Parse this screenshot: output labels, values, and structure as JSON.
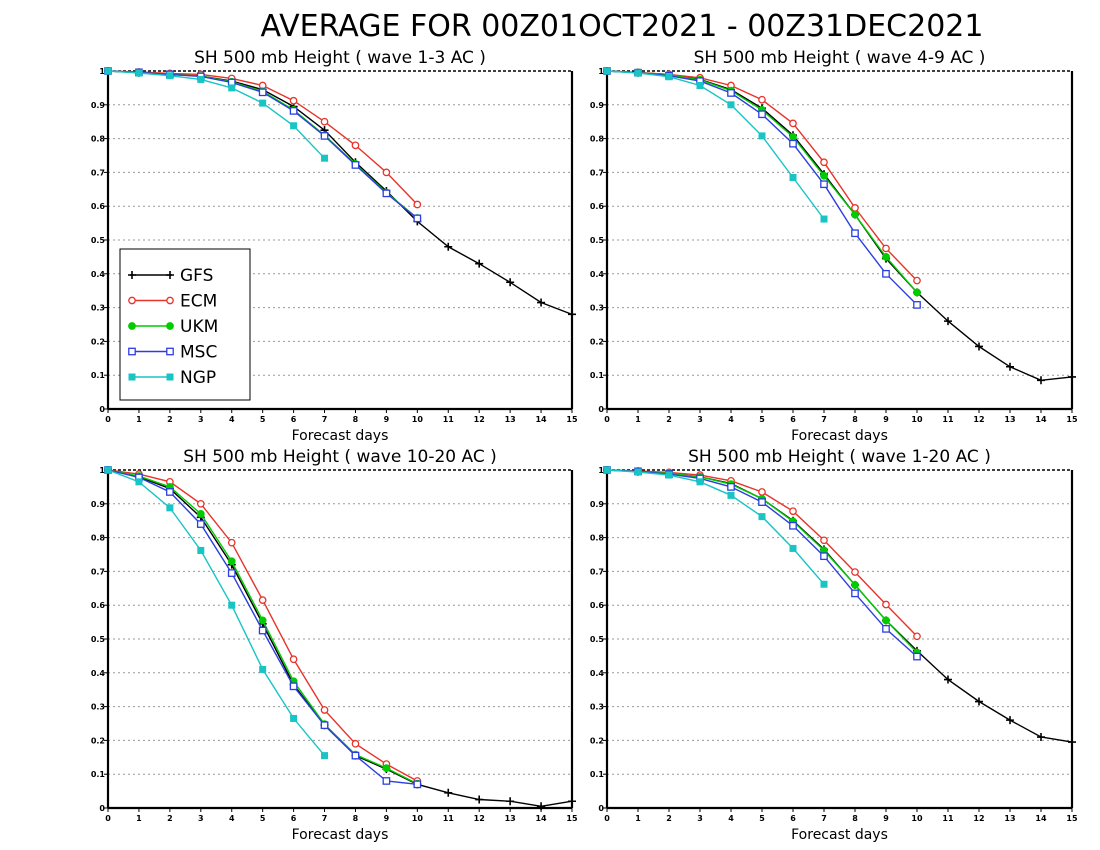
{
  "title": "AVERAGE FOR 00Z01OCT2021 - 00Z31DEC2021",
  "colors": {
    "GFS": "#000000",
    "ECM": "#e8332a",
    "UKM": "#00cc00",
    "MSC": "#2b3fe0",
    "NGP": "#18c4c4"
  },
  "chart_data": [
    {
      "type": "line",
      "title": "SH 500 mb Height ( wave 1-3 AC )",
      "xlabel": "Forecast days",
      "xlim": [
        0,
        15
      ],
      "ylim": [
        0,
        1
      ],
      "x_ticks": [
        "0",
        "1",
        "2",
        "3",
        "4",
        "5",
        "6",
        "7",
        "8",
        "9",
        "10",
        "11",
        "12",
        "13",
        "14",
        "15"
      ],
      "y_ticks": [
        "0",
        "0.1",
        "0.2",
        "0.3",
        "0.4",
        "0.5",
        "0.6",
        "0.7",
        "0.8",
        "0.9",
        "1"
      ],
      "grid": true,
      "legend": {
        "position": "lower-left",
        "entries": [
          "GFS",
          "ECM",
          "UKM",
          "MSC",
          "NGP"
        ]
      },
      "series": [
        {
          "name": "GFS",
          "marker": "plus",
          "x": [
            0,
            1,
            2,
            3,
            4,
            5,
            6,
            7,
            8,
            9,
            10,
            11,
            12,
            13,
            14,
            15
          ],
          "values": [
            1.0,
            0.995,
            0.99,
            0.985,
            0.97,
            0.945,
            0.895,
            0.825,
            0.73,
            0.645,
            0.555,
            0.48,
            0.43,
            0.375,
            0.315,
            0.28
          ]
        },
        {
          "name": "ECM",
          "marker": "circle",
          "x": [
            0,
            1,
            2,
            3,
            4,
            5,
            6,
            7,
            8,
            9,
            10
          ],
          "values": [
            1.0,
            0.997,
            0.993,
            0.99,
            0.978,
            0.957,
            0.912,
            0.85,
            0.78,
            0.7,
            0.605
          ]
        },
        {
          "name": "UKM",
          "marker": "dot",
          "x": [
            0,
            1,
            2,
            3,
            4,
            5,
            6,
            7,
            8,
            9,
            10
          ],
          "values": [
            1.0,
            0.996,
            0.99,
            0.985,
            0.968,
            0.94,
            0.885,
            0.81,
            0.725,
            0.64,
            0.565
          ]
        },
        {
          "name": "MSC",
          "marker": "square",
          "x": [
            0,
            1,
            2,
            3,
            4,
            5,
            6,
            7,
            8,
            9,
            10
          ],
          "values": [
            1.0,
            0.996,
            0.99,
            0.984,
            0.966,
            0.937,
            0.882,
            0.808,
            0.722,
            0.638,
            0.564
          ]
        },
        {
          "name": "NGP",
          "marker": "filled-square",
          "x": [
            0,
            1,
            2,
            3,
            4,
            5,
            6,
            7
          ],
          "values": [
            1.0,
            0.994,
            0.986,
            0.975,
            0.95,
            0.905,
            0.838,
            0.742
          ]
        }
      ]
    },
    {
      "type": "line",
      "title": "SH 500 mb Height ( wave 4-9 AC )",
      "xlabel": "Forecast days",
      "xlim": [
        0,
        15
      ],
      "ylim": [
        0,
        1
      ],
      "x_ticks": [
        "0",
        "1",
        "2",
        "3",
        "4",
        "5",
        "6",
        "7",
        "8",
        "9",
        "10",
        "11",
        "12",
        "13",
        "14",
        "15"
      ],
      "y_ticks": [
        "0",
        "0.1",
        "0.2",
        "0.3",
        "0.4",
        "0.5",
        "0.6",
        "0.7",
        "0.8",
        "0.9",
        "1"
      ],
      "grid": true,
      "series": [
        {
          "name": "GFS",
          "marker": "plus",
          "x": [
            0,
            1,
            2,
            3,
            4,
            5,
            6,
            7,
            8,
            9,
            10,
            11,
            12,
            13,
            14,
            15
          ],
          "values": [
            1.0,
            0.995,
            0.99,
            0.975,
            0.945,
            0.89,
            0.81,
            0.695,
            0.575,
            0.445,
            0.345,
            0.26,
            0.185,
            0.125,
            0.085,
            0.095
          ]
        },
        {
          "name": "ECM",
          "marker": "circle",
          "x": [
            0,
            1,
            2,
            3,
            4,
            5,
            6,
            7,
            8,
            9,
            10
          ],
          "values": [
            1.0,
            0.996,
            0.99,
            0.98,
            0.957,
            0.915,
            0.845,
            0.73,
            0.595,
            0.475,
            0.38
          ]
        },
        {
          "name": "UKM",
          "marker": "dot",
          "x": [
            0,
            1,
            2,
            3,
            4,
            5,
            6,
            7,
            8,
            9,
            10
          ],
          "values": [
            1.0,
            0.995,
            0.988,
            0.974,
            0.942,
            0.885,
            0.805,
            0.69,
            0.575,
            0.45,
            0.345
          ]
        },
        {
          "name": "MSC",
          "marker": "square",
          "x": [
            0,
            1,
            2,
            3,
            4,
            5,
            6,
            7,
            8,
            9,
            10
          ],
          "values": [
            1.0,
            0.995,
            0.986,
            0.97,
            0.935,
            0.872,
            0.785,
            0.665,
            0.52,
            0.4,
            0.308
          ]
        },
        {
          "name": "NGP",
          "marker": "filled-square",
          "x": [
            0,
            1,
            2,
            3,
            4,
            5,
            6,
            7
          ],
          "values": [
            1.0,
            0.994,
            0.983,
            0.957,
            0.9,
            0.808,
            0.685,
            0.562
          ]
        }
      ]
    },
    {
      "type": "line",
      "title": "SH 500 mb Height ( wave 10-20 AC )",
      "xlabel": "Forecast days",
      "xlim": [
        0,
        15
      ],
      "ylim": [
        0,
        1
      ],
      "x_ticks": [
        "0",
        "1",
        "2",
        "3",
        "4",
        "5",
        "6",
        "7",
        "8",
        "9",
        "10",
        "11",
        "12",
        "13",
        "14",
        "15"
      ],
      "y_ticks": [
        "0",
        "0.1",
        "0.2",
        "0.3",
        "0.4",
        "0.5",
        "0.6",
        "0.7",
        "0.8",
        "0.9",
        "1"
      ],
      "grid": true,
      "series": [
        {
          "name": "GFS",
          "marker": "plus",
          "x": [
            0,
            1,
            2,
            3,
            4,
            5,
            6,
            7,
            8,
            9,
            10,
            11,
            12,
            13,
            14,
            15
          ],
          "values": [
            1.0,
            0.98,
            0.945,
            0.86,
            0.72,
            0.545,
            0.365,
            0.245,
            0.155,
            0.115,
            0.07,
            0.045,
            0.025,
            0.02,
            0.005,
            0.02
          ]
        },
        {
          "name": "ECM",
          "marker": "circle",
          "x": [
            0,
            1,
            2,
            3,
            4,
            5,
            6,
            7,
            8,
            9,
            10
          ],
          "values": [
            1.0,
            0.988,
            0.965,
            0.9,
            0.785,
            0.615,
            0.44,
            0.29,
            0.19,
            0.13,
            0.08
          ]
        },
        {
          "name": "UKM",
          "marker": "dot",
          "x": [
            0,
            1,
            2,
            3,
            4,
            5,
            6,
            7,
            8,
            9,
            10
          ],
          "values": [
            1.0,
            0.982,
            0.95,
            0.87,
            0.73,
            0.555,
            0.375,
            0.248,
            0.158,
            0.118,
            0.072
          ]
        },
        {
          "name": "MSC",
          "marker": "square",
          "x": [
            0,
            1,
            2,
            3,
            4,
            5,
            6,
            7,
            8,
            9,
            10
          ],
          "values": [
            1.0,
            0.978,
            0.935,
            0.84,
            0.695,
            0.525,
            0.36,
            0.245,
            0.155,
            0.08,
            0.07
          ]
        },
        {
          "name": "NGP",
          "marker": "filled-square",
          "x": [
            0,
            1,
            2,
            3,
            4,
            5,
            6,
            7
          ],
          "values": [
            1.0,
            0.965,
            0.888,
            0.762,
            0.6,
            0.41,
            0.265,
            0.155
          ]
        }
      ]
    },
    {
      "type": "line",
      "title": "SH 500 mb Height ( wave 1-20 AC )",
      "xlabel": "Forecast days",
      "xlim": [
        0,
        15
      ],
      "ylim": [
        0,
        1
      ],
      "x_ticks": [
        "0",
        "1",
        "2",
        "3",
        "4",
        "5",
        "6",
        "7",
        "8",
        "9",
        "10",
        "11",
        "12",
        "13",
        "14",
        "15"
      ],
      "y_ticks": [
        "0",
        "0.1",
        "0.2",
        "0.3",
        "0.4",
        "0.5",
        "0.6",
        "0.7",
        "0.8",
        "0.9",
        "1"
      ],
      "grid": true,
      "series": [
        {
          "name": "GFS",
          "marker": "plus",
          "x": [
            0,
            1,
            2,
            3,
            4,
            5,
            6,
            7,
            8,
            9,
            10,
            11,
            12,
            13,
            14,
            15
          ],
          "values": [
            1.0,
            0.995,
            0.99,
            0.98,
            0.96,
            0.915,
            0.85,
            0.765,
            0.66,
            0.555,
            0.465,
            0.38,
            0.315,
            0.26,
            0.21,
            0.195
          ]
        },
        {
          "name": "ECM",
          "marker": "circle",
          "x": [
            0,
            1,
            2,
            3,
            4,
            5,
            6,
            7,
            8,
            9,
            10
          ],
          "values": [
            1.0,
            0.997,
            0.993,
            0.985,
            0.968,
            0.935,
            0.878,
            0.792,
            0.698,
            0.602,
            0.508
          ]
        },
        {
          "name": "UKM",
          "marker": "dot",
          "x": [
            0,
            1,
            2,
            3,
            4,
            5,
            6,
            7,
            8,
            9,
            10
          ],
          "values": [
            1.0,
            0.996,
            0.99,
            0.98,
            0.958,
            0.915,
            0.848,
            0.762,
            0.66,
            0.555,
            0.46
          ]
        },
        {
          "name": "MSC",
          "marker": "square",
          "x": [
            0,
            1,
            2,
            3,
            4,
            5,
            6,
            7,
            8,
            9,
            10
          ],
          "values": [
            1.0,
            0.996,
            0.988,
            0.975,
            0.95,
            0.905,
            0.835,
            0.745,
            0.635,
            0.53,
            0.448
          ]
        },
        {
          "name": "NGP",
          "marker": "filled-square",
          "x": [
            0,
            1,
            2,
            3,
            4,
            5,
            6,
            7
          ],
          "values": [
            1.0,
            0.994,
            0.985,
            0.965,
            0.925,
            0.862,
            0.768,
            0.662
          ]
        }
      ]
    }
  ]
}
